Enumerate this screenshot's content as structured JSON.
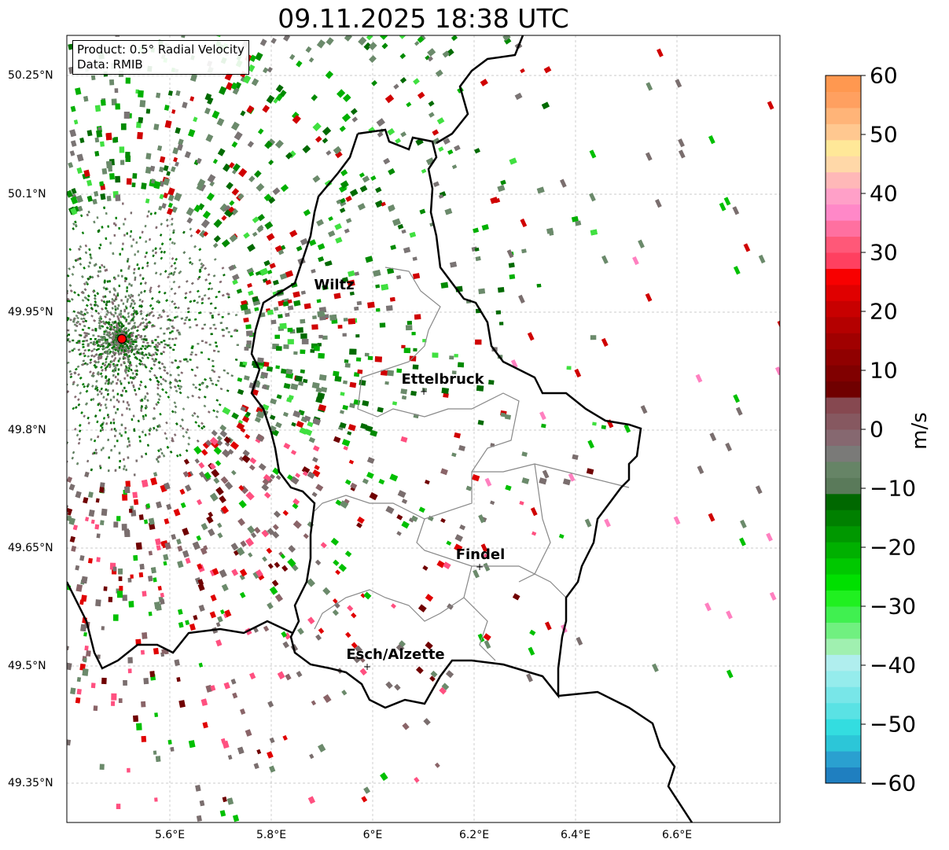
{
  "title": "09.11.2025 18:38 UTC",
  "info": {
    "product": "Product: 0.5° Radial Velocity",
    "data": "Data: RMIB"
  },
  "x_ticks": [
    "5.6°E",
    "5.8°E",
    "6°E",
    "6.2°E",
    "6.4°E",
    "6.6°E"
  ],
  "y_ticks": [
    "50.25°N",
    "50.1°N",
    "49.95°N",
    "49.8°N",
    "49.65°N",
    "49.5°N",
    "49.35°N"
  ],
  "cities": [
    {
      "name": "Wiltz"
    },
    {
      "name": "Ettelbruck"
    },
    {
      "name": "Findel"
    },
    {
      "name": "Esch/Alzette"
    }
  ],
  "colorbar": {
    "unit": "m/s",
    "ticks": [
      "60",
      "50",
      "40",
      "30",
      "20",
      "10",
      "0",
      "−10",
      "−20",
      "−30",
      "−40",
      "−50",
      "−60"
    ],
    "colors": [
      "#1f7fc0",
      "#2aa0d0",
      "#2cc6d8",
      "#33dde0",
      "#5ae2e4",
      "#78e6e8",
      "#95ecec",
      "#b0eeee",
      "#a0f0b0",
      "#70f080",
      "#40f050",
      "#20f020",
      "#00e000",
      "#00c800",
      "#00b000",
      "#009800",
      "#008000",
      "#006800",
      "#5a7a5a",
      "#668466",
      "#7a7a78",
      "#866870",
      "#865860",
      "#864850",
      "#700000",
      "#800000",
      "#900000",
      "#a00000",
      "#b40000",
      "#c80000",
      "#e00000",
      "#f80000",
      "#ff4060",
      "#ff5878",
      "#ff70a0",
      "#ff88c8",
      "#ffa0c8",
      "#ffb8b8",
      "#ffd8a8",
      "#ffe898",
      "#ffc890",
      "#ffb478",
      "#ffa060",
      "#ff9850"
    ]
  }
}
